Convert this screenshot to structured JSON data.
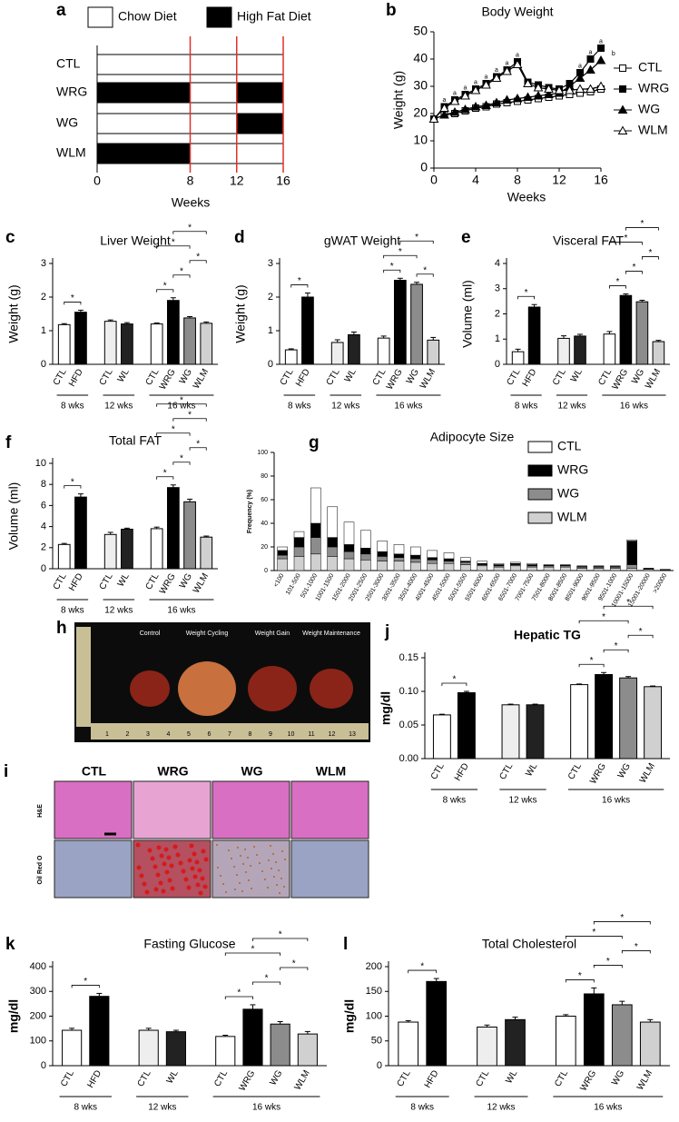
{
  "chart_data": [
    {
      "type": "timeline",
      "label": "a",
      "xlabel": "Weeks",
      "xlim": [
        0,
        16
      ],
      "xticks": [
        0,
        8,
        12,
        16
      ],
      "diets": [
        {
          "name": "Chow Diet",
          "color": "#ffffff"
        },
        {
          "name": "High Fat Diet",
          "color": "#000000"
        }
      ],
      "rows": [
        {
          "name": "CTL",
          "segments": [
            {
              "start": 0,
              "end": 16,
              "diet": 0
            }
          ]
        },
        {
          "name": "WRG",
          "segments": [
            {
              "start": 0,
              "end": 8,
              "diet": 1
            },
            {
              "start": 8,
              "end": 12,
              "diet": 0
            },
            {
              "start": 12,
              "end": 16,
              "diet": 1
            }
          ]
        },
        {
          "name": "WG",
          "segments": [
            {
              "start": 0,
              "end": 12,
              "diet": 0
            },
            {
              "start": 12,
              "end": 16,
              "diet": 1
            }
          ]
        },
        {
          "name": "WLM",
          "segments": [
            {
              "start": 0,
              "end": 8,
              "diet": 1
            },
            {
              "start": 8,
              "end": 16,
              "diet": 0
            }
          ]
        }
      ]
    },
    {
      "type": "line",
      "label": "b",
      "title": "Body Weight",
      "xlabel": "Weeks",
      "ylabel": "Weight (g)",
      "xlim": [
        0,
        16
      ],
      "xticks": [
        0,
        4,
        8,
        12,
        16
      ],
      "ylim": [
        0,
        50
      ],
      "yticks": [
        0,
        10,
        20,
        30,
        40,
        50
      ],
      "x": [
        0,
        1,
        2,
        3,
        4,
        5,
        6,
        7,
        8,
        9,
        10,
        11,
        12,
        13,
        14,
        15,
        16
      ],
      "series": [
        {
          "name": "CTL",
          "marker": "square-open",
          "color": "#000000",
          "values": [
            18,
            19.5,
            20,
            21,
            22,
            22.5,
            23.5,
            24,
            24.5,
            25,
            25.5,
            26,
            26.5,
            27,
            27.5,
            28,
            29
          ]
        },
        {
          "name": "WRG",
          "marker": "square",
          "color": "#000000",
          "values": [
            18,
            22.5,
            25,
            27,
            29,
            31,
            33.5,
            36,
            39,
            31.5,
            30.5,
            29.5,
            29,
            31,
            35,
            40,
            44
          ]
        },
        {
          "name": "WG",
          "marker": "triangle",
          "color": "#000000",
          "values": [
            18,
            19.5,
            20.5,
            21.5,
            22.5,
            23,
            24,
            25,
            25.5,
            26,
            26.5,
            27,
            27.5,
            30,
            33,
            36,
            39.5
          ]
        },
        {
          "name": "WLM",
          "marker": "triangle-open",
          "color": "#000000",
          "values": [
            18,
            22,
            24.5,
            26.5,
            28.5,
            30.5,
            33,
            35.5,
            38,
            31,
            29.5,
            29,
            28.5,
            28.5,
            29,
            29,
            30
          ]
        }
      ],
      "annotations": [
        {
          "x": 1,
          "y": 25,
          "text": "a"
        },
        {
          "x": 2,
          "y": 27.5,
          "text": "a"
        },
        {
          "x": 3,
          "y": 29.5,
          "text": "a"
        },
        {
          "x": 4,
          "y": 31.5,
          "text": "a"
        },
        {
          "x": 5,
          "y": 33.5,
          "text": "a"
        },
        {
          "x": 6,
          "y": 36,
          "text": "a"
        },
        {
          "x": 7,
          "y": 38.5,
          "text": "a"
        },
        {
          "x": 8,
          "y": 41.5,
          "text": "a"
        },
        {
          "x": 14,
          "y": 37.5,
          "text": "a"
        },
        {
          "x": 15,
          "y": 42.5,
          "text": "a"
        },
        {
          "x": 16,
          "y": 46.5,
          "text": "a"
        },
        {
          "x": 17.2,
          "y": 42,
          "text": "b"
        }
      ]
    },
    {
      "type": "bar",
      "label": "c",
      "title": "Liver Weight",
      "ylabel": "Weight (g)",
      "ylim": [
        0,
        3
      ],
      "yticks": [
        0,
        1,
        2,
        3
      ],
      "categories": [
        "CTL",
        "HFD",
        "CTL",
        "WL",
        "CTL",
        "WRG",
        "WG",
        "WLM"
      ],
      "groups": [
        {
          "label": "8 wks",
          "size": 2
        },
        {
          "label": "12 wks",
          "size": 2
        },
        {
          "label": "16 wks",
          "size": 4
        }
      ],
      "colors": [
        "#ffffff",
        "#000000",
        "#eeeeee",
        "#222222",
        "#ffffff",
        "#000000",
        "#8c8c8c",
        "#d0d0d0"
      ],
      "values": [
        1.18,
        1.55,
        1.28,
        1.2,
        1.2,
        1.9,
        1.38,
        1.22
      ],
      "errors": [
        0.03,
        0.06,
        0.04,
        0.04,
        0.03,
        0.08,
        0.04,
        0.04
      ],
      "significance": [
        {
          "from": 0,
          "to": 1,
          "label": "*"
        },
        {
          "from": 4,
          "to": 5,
          "label": "*"
        },
        {
          "from": 5,
          "to": 6,
          "label": "*"
        },
        {
          "from": 6,
          "to": 7,
          "label": "*"
        },
        {
          "from": 4,
          "to": 6,
          "label": "*"
        },
        {
          "from": 5,
          "to": 7,
          "label": "*"
        }
      ]
    },
    {
      "type": "bar",
      "label": "d",
      "title": "gWAT Weight",
      "ylabel": "Weight (g)",
      "ylim": [
        0,
        3
      ],
      "yticks": [
        0,
        1,
        2,
        3
      ],
      "categories": [
        "CTL",
        "HFD",
        "CTL",
        "WL",
        "CTL",
        "WRG",
        "WG",
        "WLM"
      ],
      "groups": [
        {
          "label": "8 wks",
          "size": 2
        },
        {
          "label": "12 wks",
          "size": 2
        },
        {
          "label": "16 wks",
          "size": 4
        }
      ],
      "colors": [
        "#ffffff",
        "#000000",
        "#eeeeee",
        "#222222",
        "#ffffff",
        "#000000",
        "#8c8c8c",
        "#d0d0d0"
      ],
      "values": [
        0.43,
        2.0,
        0.65,
        0.88,
        0.78,
        2.5,
        2.38,
        0.72
      ],
      "errors": [
        0.03,
        0.12,
        0.08,
        0.08,
        0.06,
        0.06,
        0.06,
        0.08
      ],
      "significance": [
        {
          "from": 0,
          "to": 1,
          "label": "*"
        },
        {
          "from": 4,
          "to": 5,
          "label": "*"
        },
        {
          "from": 6,
          "to": 7,
          "label": "*"
        },
        {
          "from": 4,
          "to": 6,
          "label": "*"
        },
        {
          "from": 5,
          "to": 7,
          "label": "*"
        }
      ]
    },
    {
      "type": "bar",
      "label": "e",
      "title": "Visceral FAT",
      "ylabel": "Volume (ml)",
      "ylim": [
        0,
        4
      ],
      "yticks": [
        0,
        1,
        2,
        3,
        4
      ],
      "categories": [
        "CTL",
        "HFD",
        "CTL",
        "WL",
        "CTL",
        "WRG",
        "WG",
        "WLM"
      ],
      "groups": [
        {
          "label": "8 wks",
          "size": 2
        },
        {
          "label": "12 wks",
          "size": 2
        },
        {
          "label": "16 wks",
          "size": 4
        }
      ],
      "colors": [
        "#ffffff",
        "#000000",
        "#eeeeee",
        "#222222",
        "#ffffff",
        "#000000",
        "#8c8c8c",
        "#d0d0d0"
      ],
      "values": [
        0.5,
        2.27,
        1.03,
        1.12,
        1.2,
        2.73,
        2.48,
        0.9
      ],
      "errors": [
        0.1,
        0.1,
        0.1,
        0.07,
        0.1,
        0.06,
        0.06,
        0.05
      ],
      "significance": [
        {
          "from": 0,
          "to": 1,
          "label": "*"
        },
        {
          "from": 4,
          "to": 5,
          "label": "*"
        },
        {
          "from": 5,
          "to": 6,
          "label": "*"
        },
        {
          "from": 6,
          "to": 7,
          "label": "*"
        },
        {
          "from": 4,
          "to": 6,
          "label": "*"
        },
        {
          "from": 5,
          "to": 7,
          "label": "*"
        }
      ]
    },
    {
      "type": "bar",
      "label": "f",
      "title": "Total FAT",
      "ylabel": "Volume (ml)",
      "ylim": [
        0,
        10
      ],
      "yticks": [
        0,
        2,
        4,
        6,
        8,
        10
      ],
      "categories": [
        "CTL",
        "HFD",
        "CTL",
        "WL",
        "CTL",
        "WRG",
        "WG",
        "WLM"
      ],
      "groups": [
        {
          "label": "8 wks",
          "size": 2
        },
        {
          "label": "12 wks",
          "size": 2
        },
        {
          "label": "16 wks",
          "size": 4
        }
      ],
      "colors": [
        "#ffffff",
        "#000000",
        "#eeeeee",
        "#222222",
        "#ffffff",
        "#000000",
        "#8c8c8c",
        "#d0d0d0"
      ],
      "values": [
        2.3,
        6.8,
        3.25,
        3.75,
        3.8,
        7.7,
        6.35,
        3.0
      ],
      "errors": [
        0.1,
        0.3,
        0.2,
        0.1,
        0.15,
        0.25,
        0.25,
        0.1
      ],
      "significance": [
        {
          "from": 0,
          "to": 1,
          "label": "*"
        },
        {
          "from": 4,
          "to": 5,
          "label": "*"
        },
        {
          "from": 5,
          "to": 6,
          "label": "*"
        },
        {
          "from": 6,
          "to": 7,
          "label": "*"
        },
        {
          "from": 4,
          "to": 6,
          "label": "*"
        },
        {
          "from": 5,
          "to": 7,
          "label": "*"
        },
        {
          "from": 4,
          "to": 7,
          "label": "*"
        }
      ]
    },
    {
      "type": "stacked-bar",
      "label": "g",
      "title": "Adipocyte Size",
      "ylabel": "Frequency (%)",
      "ylim": [
        0,
        100
      ],
      "yticks": [
        0,
        20,
        40,
        60,
        80,
        100
      ],
      "categories": [
        "<100",
        "101-500",
        "501-1000",
        "1001-1500",
        "1501-2000",
        "2001-2500",
        "2501-3000",
        "3001-3500",
        "3501-4000",
        "4001-4500",
        "4501-5000",
        "5001-5500",
        "5501-6000",
        "6001-6500",
        "6501-7000",
        "7001-7500",
        "7501-8000",
        "8001-8500",
        "8501-9000",
        "9001-9500",
        "9501-1000",
        "10001-15000",
        "15001-20000",
        ">20000"
      ],
      "series": [
        {
          "name": "WLM",
          "color": "#d0d0d0",
          "values": [
            10,
            12,
            14,
            12,
            10,
            9,
            8,
            8,
            7,
            6,
            6,
            5,
            4,
            3,
            4,
            3,
            3,
            3,
            2,
            2,
            2,
            2,
            1,
            0.5
          ]
        },
        {
          "name": "WG",
          "color": "#8c8c8c",
          "values": [
            3,
            8,
            14,
            8,
            6,
            5,
            4,
            3,
            3,
            3,
            2,
            2,
            1,
            1,
            1,
            1,
            1,
            1,
            1,
            1,
            1,
            3,
            0.5,
            0.2
          ]
        },
        {
          "name": "WRG",
          "color": "#000000",
          "values": [
            4,
            8,
            12,
            8,
            6,
            5,
            4,
            3,
            3,
            2,
            2,
            1,
            1,
            1,
            1,
            1,
            0.5,
            0.5,
            0.5,
            0.5,
            0.5,
            20,
            0.3,
            0.2
          ]
        },
        {
          "name": "CTL",
          "color": "#ffffff",
          "values": [
            3,
            5,
            30,
            26,
            19,
            15,
            9,
            8,
            7,
            6,
            5,
            3,
            2,
            1,
            1,
            1,
            0.5,
            0.5,
            0.5,
            0.5,
            0.5,
            1,
            0.2,
            0.1
          ]
        }
      ]
    },
    {
      "type": "image",
      "label": "h",
      "captions": [
        "Control",
        "Weight Cycling",
        "Weight Gain",
        "Weight Maintenance"
      ],
      "ruler": [
        1,
        2,
        3,
        4,
        5,
        6,
        7,
        8,
        9,
        10,
        11,
        12,
        13
      ]
    },
    {
      "type": "image-grid",
      "label": "i",
      "columns": [
        "CTL",
        "WRG",
        "WG",
        "WLM"
      ],
      "rows": [
        "H&E",
        "Oil Red O"
      ]
    },
    {
      "type": "bar",
      "label": "j",
      "title": "Hepatic TG",
      "title_bold": true,
      "ylabel": "mg/dl",
      "ylabel_bold": true,
      "ylim": [
        0,
        0.15
      ],
      "yticks": [
        {
          "value": 0,
          "label": "0.00"
        },
        {
          "value": 0.05,
          "label": "0.05"
        },
        {
          "value": 0.1,
          "label": "0.10"
        },
        {
          "value": 0.15,
          "label": "0.15"
        }
      ],
      "categories": [
        "CTL",
        "HFD",
        "CTL",
        "WL",
        "CTL",
        "WRG",
        "WG",
        "WLM"
      ],
      "groups": [
        {
          "label": "8 wks",
          "size": 2
        },
        {
          "label": "12 wks",
          "size": 2
        },
        {
          "label": "16 wks",
          "size": 4
        }
      ],
      "colors": [
        "#ffffff",
        "#000000",
        "#eeeeee",
        "#222222",
        "#ffffff",
        "#000000",
        "#8c8c8c",
        "#d0d0d0"
      ],
      "values": [
        0.065,
        0.098,
        0.08,
        0.08,
        0.11,
        0.125,
        0.12,
        0.107
      ],
      "errors": [
        0.001,
        0.002,
        0.001,
        0.001,
        0.001,
        0.003,
        0.002,
        0.001
      ],
      "significance": [
        {
          "from": 0,
          "to": 1,
          "label": "*"
        },
        {
          "from": 4,
          "to": 5,
          "label": "*"
        },
        {
          "from": 5,
          "to": 6,
          "label": "*"
        },
        {
          "from": 6,
          "to": 7,
          "label": "*"
        },
        {
          "from": 4,
          "to": 6,
          "label": "*"
        },
        {
          "from": 5,
          "to": 7,
          "label": "*"
        }
      ]
    },
    {
      "type": "bar",
      "label": "k",
      "title": "Fasting Glucose",
      "ylabel": "mg/dl",
      "ylabel_bold": true,
      "ylim": [
        0,
        400
      ],
      "yticks": [
        0,
        100,
        200,
        300,
        400
      ],
      "categories": [
        "CTL",
        "HFD",
        "CTL",
        "WL",
        "CTL",
        "WRG",
        "WG",
        "WLM"
      ],
      "groups": [
        {
          "label": "8 wks",
          "size": 2
        },
        {
          "label": "12 wks",
          "size": 2
        },
        {
          "label": "16 wks",
          "size": 4
        }
      ],
      "colors": [
        "#ffffff",
        "#000000",
        "#eeeeee",
        "#222222",
        "#ffffff",
        "#000000",
        "#8c8c8c",
        "#d0d0d0"
      ],
      "values": [
        143,
        280,
        143,
        137,
        118,
        228,
        168,
        128
      ],
      "errors": [
        8,
        12,
        8,
        6,
        5,
        18,
        10,
        10
      ],
      "significance": [
        {
          "from": 0,
          "to": 1,
          "label": "*"
        },
        {
          "from": 4,
          "to": 5,
          "label": "*"
        },
        {
          "from": 5,
          "to": 6,
          "label": "*"
        },
        {
          "from": 6,
          "to": 7,
          "label": "*"
        },
        {
          "from": 4,
          "to": 6,
          "label": "*"
        },
        {
          "from": 5,
          "to": 7,
          "label": "*"
        }
      ]
    },
    {
      "type": "bar",
      "label": "l",
      "title": "Total Cholesterol",
      "ylabel": "mg/dl",
      "ylabel_bold": true,
      "ylim": [
        0,
        200
      ],
      "yticks": [
        0,
        50,
        100,
        150,
        200
      ],
      "categories": [
        "CTL",
        "HFD",
        "CTL",
        "WL",
        "CTL",
        "WRG",
        "WG",
        "WLM"
      ],
      "groups": [
        {
          "label": "8 wks",
          "size": 2
        },
        {
          "label": "12 wks",
          "size": 2
        },
        {
          "label": "16 wks",
          "size": 4
        }
      ],
      "colors": [
        "#ffffff",
        "#000000",
        "#eeeeee",
        "#222222",
        "#ffffff",
        "#000000",
        "#8c8c8c",
        "#d0d0d0"
      ],
      "values": [
        88,
        170,
        78,
        93,
        100,
        145,
        123,
        88
      ],
      "errors": [
        3,
        6,
        4,
        5,
        3,
        12,
        7,
        5
      ],
      "significance": [
        {
          "from": 0,
          "to": 1,
          "label": "*"
        },
        {
          "from": 4,
          "to": 5,
          "label": "*"
        },
        {
          "from": 5,
          "to": 6,
          "label": "*"
        },
        {
          "from": 6,
          "to": 7,
          "label": "*"
        },
        {
          "from": 4,
          "to": 6,
          "label": "*"
        },
        {
          "from": 5,
          "to": 7,
          "label": "*"
        }
      ]
    }
  ]
}
